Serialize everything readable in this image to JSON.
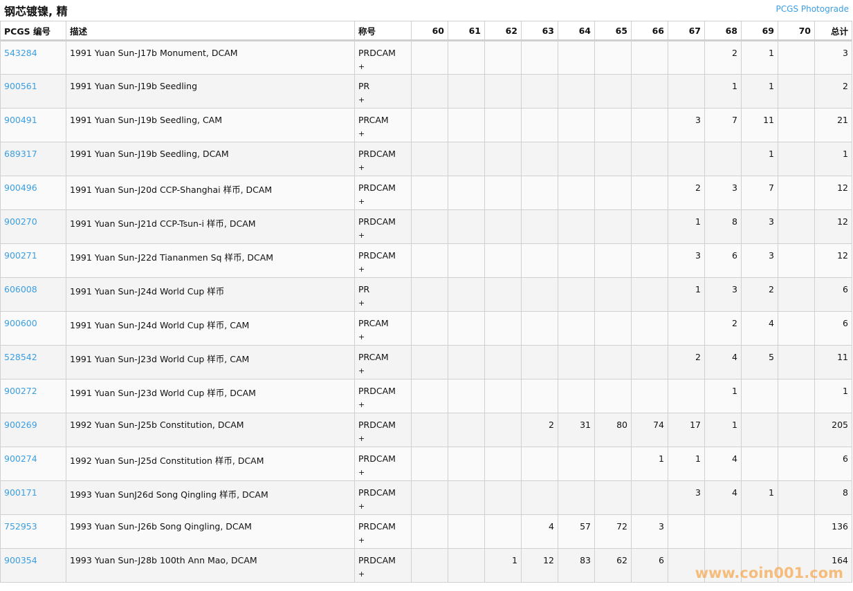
{
  "header": {
    "title": "钢芯镀镍, 精",
    "photograde_link": "PCGS Photograde"
  },
  "columns": [
    "PCGS 编号",
    "描述",
    "称号",
    "60",
    "61",
    "62",
    "63",
    "64",
    "65",
    "66",
    "67",
    "68",
    "69",
    "70",
    "总计"
  ],
  "rows": [
    {
      "id": "543284",
      "desc": "1991 Yuan Sun-J17b Monument, DCAM",
      "des": "PRDCAM",
      "plus": "+",
      "grades": [
        "",
        "",
        "",
        "",
        "",
        "",
        "",
        "",
        "2",
        "1",
        ""
      ],
      "total": "3"
    },
    {
      "id": "900561",
      "desc": "1991 Yuan Sun-J19b Seedling",
      "des": "PR",
      "plus": "+",
      "grades": [
        "",
        "",
        "",
        "",
        "",
        "",
        "",
        "",
        "1",
        "1",
        ""
      ],
      "total": "2"
    },
    {
      "id": "900491",
      "desc": "1991 Yuan Sun-J19b Seedling, CAM",
      "des": "PRCAM",
      "plus": "+",
      "grades": [
        "",
        "",
        "",
        "",
        "",
        "",
        "",
        "3",
        "7",
        "11",
        ""
      ],
      "total": "21"
    },
    {
      "id": "689317",
      "desc": "1991 Yuan Sun-J19b Seedling, DCAM",
      "des": "PRDCAM",
      "plus": "+",
      "grades": [
        "",
        "",
        "",
        "",
        "",
        "",
        "",
        "",
        "",
        "1",
        ""
      ],
      "total": "1"
    },
    {
      "id": "900496",
      "desc": "1991 Yuan Sun-J20d CCP-Shanghai 样币, DCAM",
      "des": "PRDCAM",
      "plus": "+",
      "grades": [
        "",
        "",
        "",
        "",
        "",
        "",
        "",
        "2",
        "3",
        "7",
        ""
      ],
      "total": "12"
    },
    {
      "id": "900270",
      "desc": "1991 Yuan Sun-J21d CCP-Tsun-i 样币, DCAM",
      "des": "PRDCAM",
      "plus": "+",
      "grades": [
        "",
        "",
        "",
        "",
        "",
        "",
        "",
        "1",
        "8",
        "3",
        ""
      ],
      "total": "12"
    },
    {
      "id": "900271",
      "desc": "1991 Yuan Sun-J22d Tiananmen Sq 样币, DCAM",
      "des": "PRDCAM",
      "plus": "+",
      "grades": [
        "",
        "",
        "",
        "",
        "",
        "",
        "",
        "3",
        "6",
        "3",
        ""
      ],
      "total": "12"
    },
    {
      "id": "606008",
      "desc": "1991 Yuan Sun-J24d World Cup 样币",
      "des": "PR",
      "plus": "+",
      "grades": [
        "",
        "",
        "",
        "",
        "",
        "",
        "",
        "1",
        "3",
        "2",
        ""
      ],
      "total": "6"
    },
    {
      "id": "900600",
      "desc": "1991 Yuan Sun-J24d World Cup 样币, CAM",
      "des": "PRCAM",
      "plus": "+",
      "grades": [
        "",
        "",
        "",
        "",
        "",
        "",
        "",
        "",
        "2",
        "4",
        ""
      ],
      "total": "6"
    },
    {
      "id": "528542",
      "desc": "1991 Yuan Sun-J23d World Cup 样币, CAM",
      "des": "PRCAM",
      "plus": "+",
      "grades": [
        "",
        "",
        "",
        "",
        "",
        "",
        "",
        "2",
        "4",
        "5",
        ""
      ],
      "total": "11"
    },
    {
      "id": "900272",
      "desc": "1991 Yuan Sun-J23d World Cup 样币, DCAM",
      "des": "PRDCAM",
      "plus": "+",
      "grades": [
        "",
        "",
        "",
        "",
        "",
        "",
        "",
        "",
        "1",
        "",
        ""
      ],
      "total": "1"
    },
    {
      "id": "900269",
      "desc": "1992 Yuan Sun-J25b Constitution, DCAM",
      "des": "PRDCAM",
      "plus": "+",
      "grades": [
        "",
        "",
        "",
        "2",
        "31",
        "80",
        "74",
        "17",
        "1",
        "",
        ""
      ],
      "total": "205"
    },
    {
      "id": "900274",
      "desc": "1992 Yuan Sun-J25d Constitution 样币, DCAM",
      "des": "PRDCAM",
      "plus": "+",
      "grades": [
        "",
        "",
        "",
        "",
        "",
        "",
        "1",
        "1",
        "4",
        "",
        ""
      ],
      "total": "6"
    },
    {
      "id": "900171",
      "desc": "1993 Yuan SunJ26d Song Qingling 样币, DCAM",
      "des": "PRDCAM",
      "plus": "+",
      "grades": [
        "",
        "",
        "",
        "",
        "",
        "",
        "",
        "3",
        "4",
        "1",
        ""
      ],
      "total": "8"
    },
    {
      "id": "752953",
      "desc": "1993 Yuan Sun-J26b Song Qingling, DCAM",
      "des": "PRDCAM",
      "plus": "+",
      "grades": [
        "",
        "",
        "",
        "4",
        "57",
        "72",
        "3",
        "",
        "",
        "",
        ""
      ],
      "total": "136"
    },
    {
      "id": "900354",
      "desc": "1993 Yuan Sun-J28b 100th Ann Mao, DCAM",
      "des": "PRDCAM",
      "plus": "+",
      "grades": [
        "",
        "",
        "1",
        "12",
        "83",
        "62",
        "6",
        "",
        "",
        "",
        ""
      ],
      "total": "164"
    }
  ],
  "watermark": "www.coin001.com",
  "colors": {
    "link": "#3a9ee4",
    "watermark": "#f7a54a"
  }
}
